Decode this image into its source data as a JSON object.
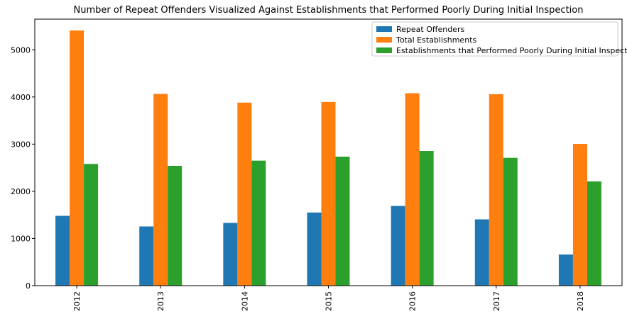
{
  "chart_data": {
    "type": "bar",
    "title": "Number of Repeat Offenders Visualized Against Establishments that Performed Poorly During Initial Inspection",
    "xlabel": "",
    "ylabel": "",
    "categories": [
      "2012",
      "2013",
      "2014",
      "2015",
      "2016",
      "2017",
      "2018"
    ],
    "ylim": [
      0,
      5650
    ],
    "yticks": [
      0,
      1000,
      2000,
      3000,
      4000,
      5000
    ],
    "grid": false,
    "legend_position": "top-right",
    "series": [
      {
        "name": "Repeat Offenders",
        "color": "#1f77b4",
        "values": [
          1480,
          1255,
          1330,
          1550,
          1690,
          1405,
          660
        ]
      },
      {
        "name": "Total Establishments",
        "color": "#ff7f0e",
        "values": [
          5410,
          4065,
          3880,
          3895,
          4080,
          4060,
          3005
        ]
      },
      {
        "name": "Establishments that Performed Poorly During Initial Inspection",
        "color": "#2ca02c",
        "values": [
          2580,
          2540,
          2650,
          2735,
          2855,
          2710,
          2210
        ]
      }
    ]
  }
}
